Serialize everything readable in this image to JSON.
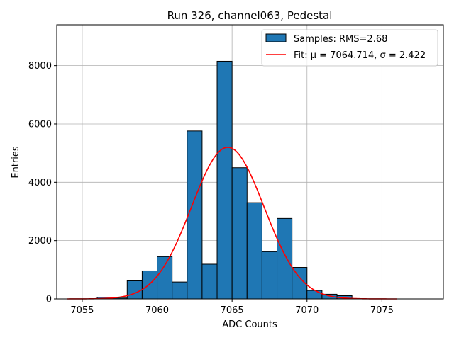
{
  "chart_data": {
    "type": "bar",
    "title": "Run 326, channel063, Pedestal",
    "xlabel": "ADC Counts",
    "ylabel": "Entries",
    "xlim": [
      7053.3,
      7079.1
    ],
    "ylim": [
      0,
      9400
    ],
    "xticks": [
      7055,
      7060,
      7065,
      7070,
      7075
    ],
    "yticks": [
      0,
      2000,
      4000,
      6000,
      8000
    ],
    "grid": true,
    "legend_position": "top-right",
    "histogram": {
      "name": "Samples: RMS=2.68",
      "bin_width": 1,
      "bin_left_edges": [
        7056,
        7057,
        7058,
        7059,
        7060,
        7061,
        7062,
        7063,
        7064,
        7065,
        7066,
        7067,
        7068,
        7069,
        7070,
        7071,
        7072
      ],
      "values": [
        60,
        30,
        620,
        960,
        1450,
        580,
        5760,
        1190,
        8150,
        4500,
        3300,
        1620,
        2760,
        1080,
        290,
        160,
        110
      ]
    },
    "fit": {
      "name": "Fit: μ = 7064.714, σ = 2.422",
      "mu": 7064.714,
      "sigma": 2.422,
      "amplitude": 5200,
      "x_range": [
        7054,
        7076
      ]
    }
  }
}
